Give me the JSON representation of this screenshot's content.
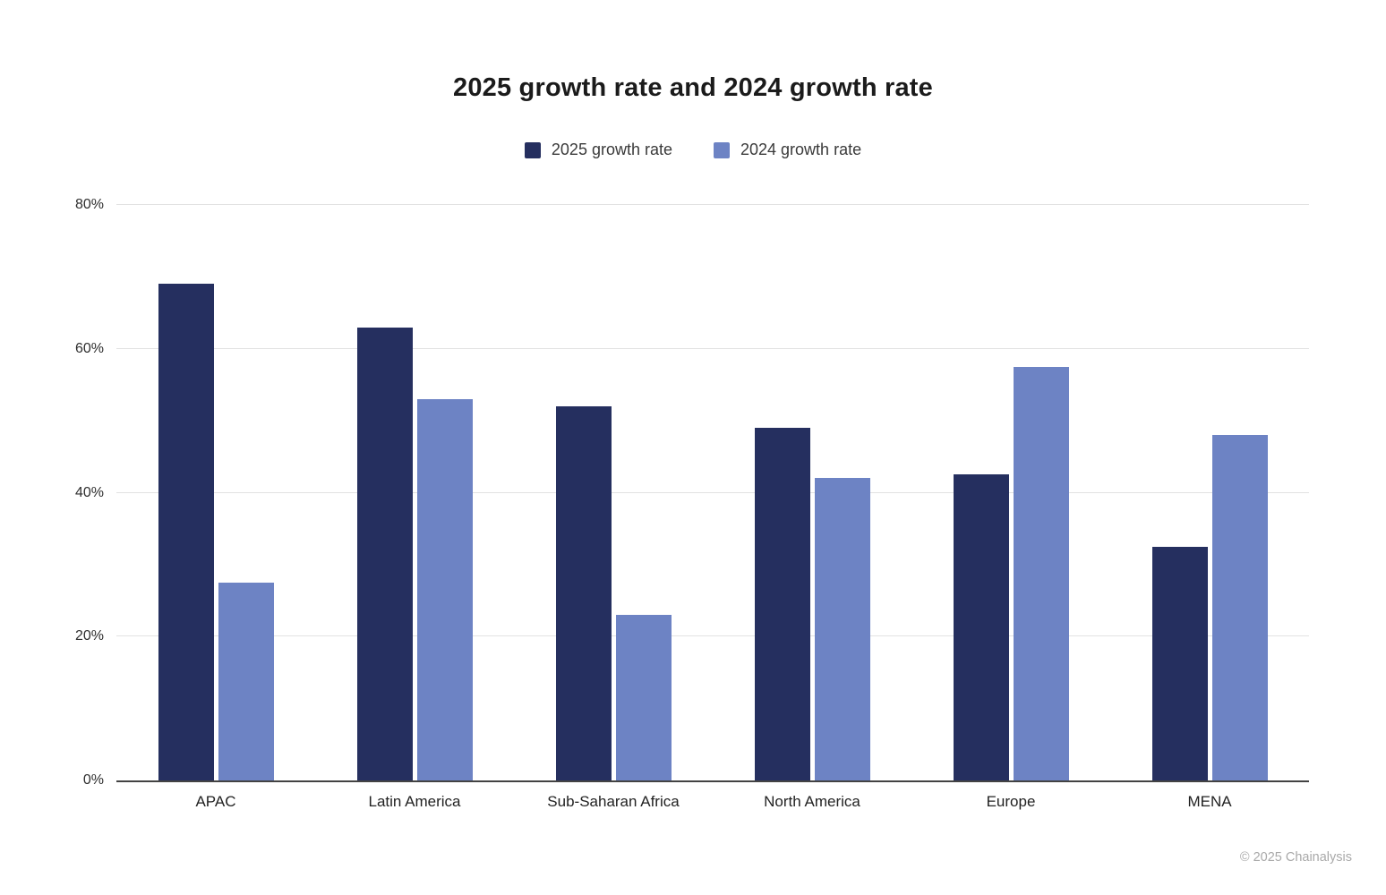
{
  "chart_data": {
    "type": "bar",
    "title": "2025 growth rate and 2024 growth rate",
    "categories": [
      "APAC",
      "Latin America",
      "Sub-Saharan Africa",
      "North America",
      "Europe",
      "MENA"
    ],
    "series": [
      {
        "name": "2025 growth rate",
        "color": "#252f5f",
        "values": [
          69,
          63,
          52,
          49,
          42.5,
          32.5
        ]
      },
      {
        "name": "2024 growth rate",
        "color": "#6d83c4",
        "values": [
          27.5,
          53,
          23,
          42,
          57.5,
          48
        ]
      }
    ],
    "ylim": [
      0,
      80
    ],
    "ytick_values": [
      0,
      20,
      40,
      60,
      80
    ],
    "ytick_labels": [
      "0%",
      "20%",
      "40%",
      "60%",
      "80%"
    ],
    "grid": true,
    "legend_position": "top"
  },
  "footer": {
    "copyright": "© 2025 Chainalysis"
  }
}
